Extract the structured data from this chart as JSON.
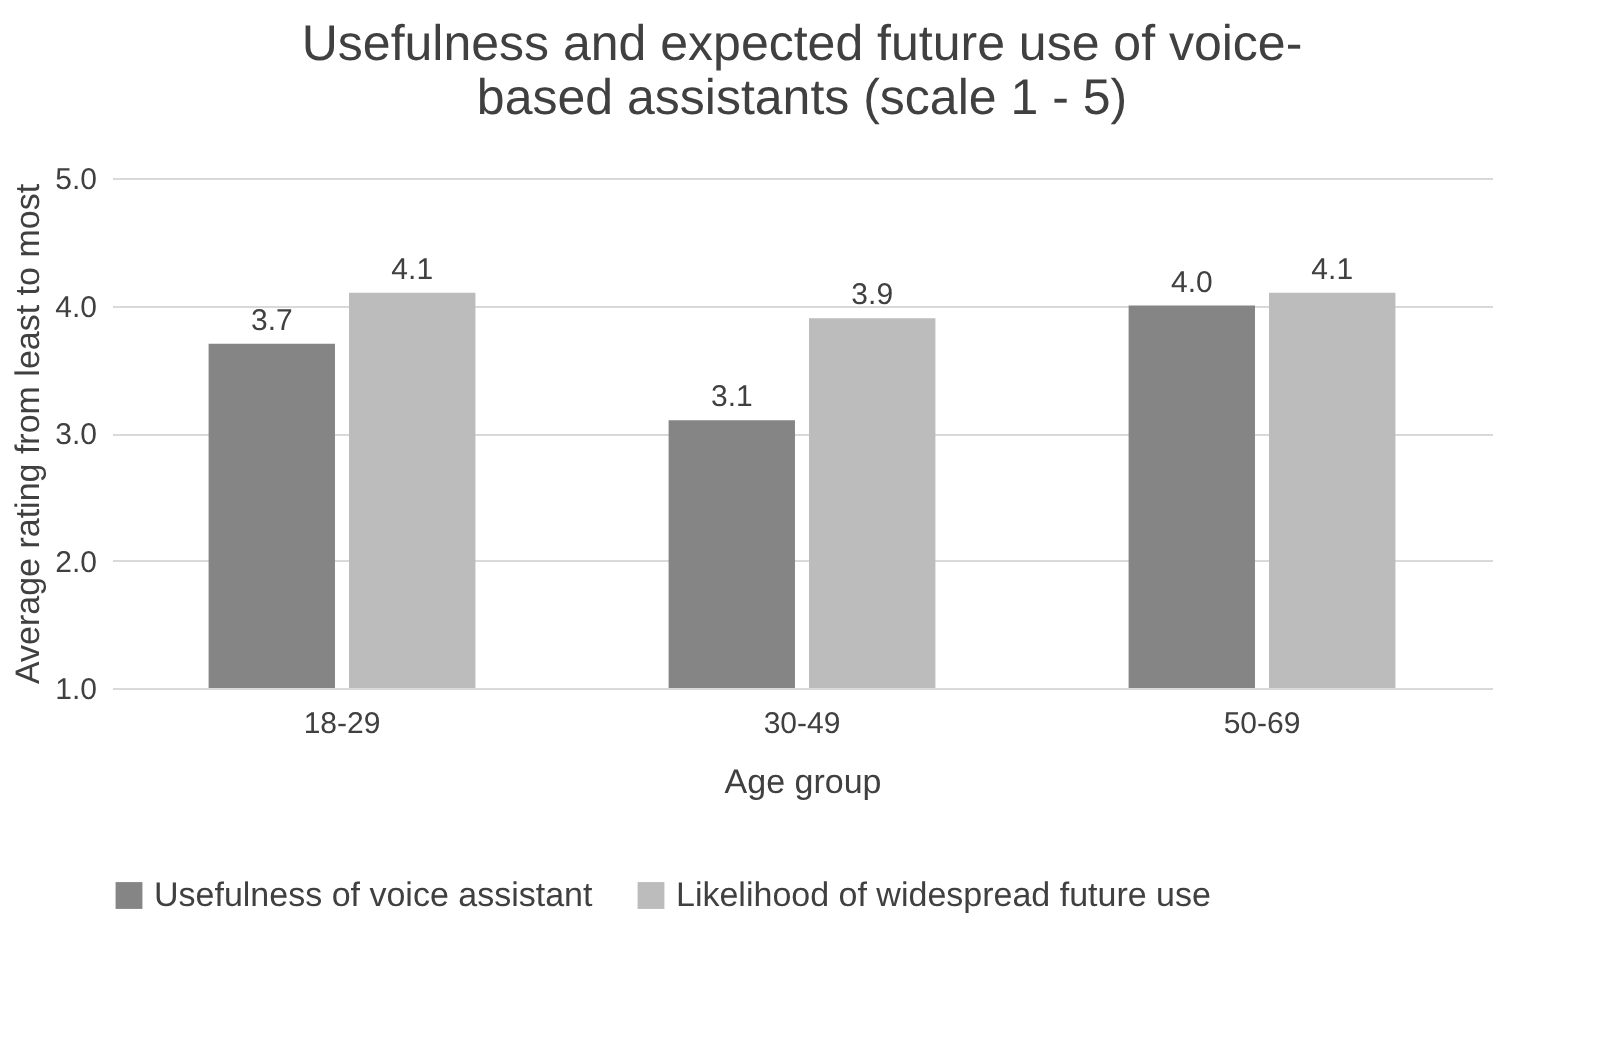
{
  "chart_data": {
    "type": "bar",
    "title": "Usefulness and expected future use of voice-based assistants (scale 1 - 5)",
    "xlabel": "Age group",
    "ylabel": "Average rating from least to most",
    "categories": [
      "18-29",
      "30-49",
      "50-69"
    ],
    "series": [
      {
        "name": "Usefulness of voice assistant",
        "color": "#858585",
        "values": [
          3.7,
          3.1,
          4.0
        ],
        "value_labels": [
          "3.7",
          "3.1",
          "4.0"
        ]
      },
      {
        "name": "Likelihood of widespread future use",
        "color": "#bcbcbd",
        "values": [
          4.1,
          3.9,
          4.1
        ],
        "value_labels": [
          "4.1",
          "3.9",
          "4.1"
        ]
      }
    ],
    "ylim": [
      1,
      5
    ],
    "yticks": [
      {
        "value": 1,
        "label": "1.0"
      },
      {
        "value": 2,
        "label": "2.0"
      },
      {
        "value": 3,
        "label": "3.0"
      },
      {
        "value": 4,
        "label": "4.0"
      },
      {
        "value": 5,
        "label": "5.0"
      }
    ],
    "grid": "y",
    "legend": "bottom"
  }
}
